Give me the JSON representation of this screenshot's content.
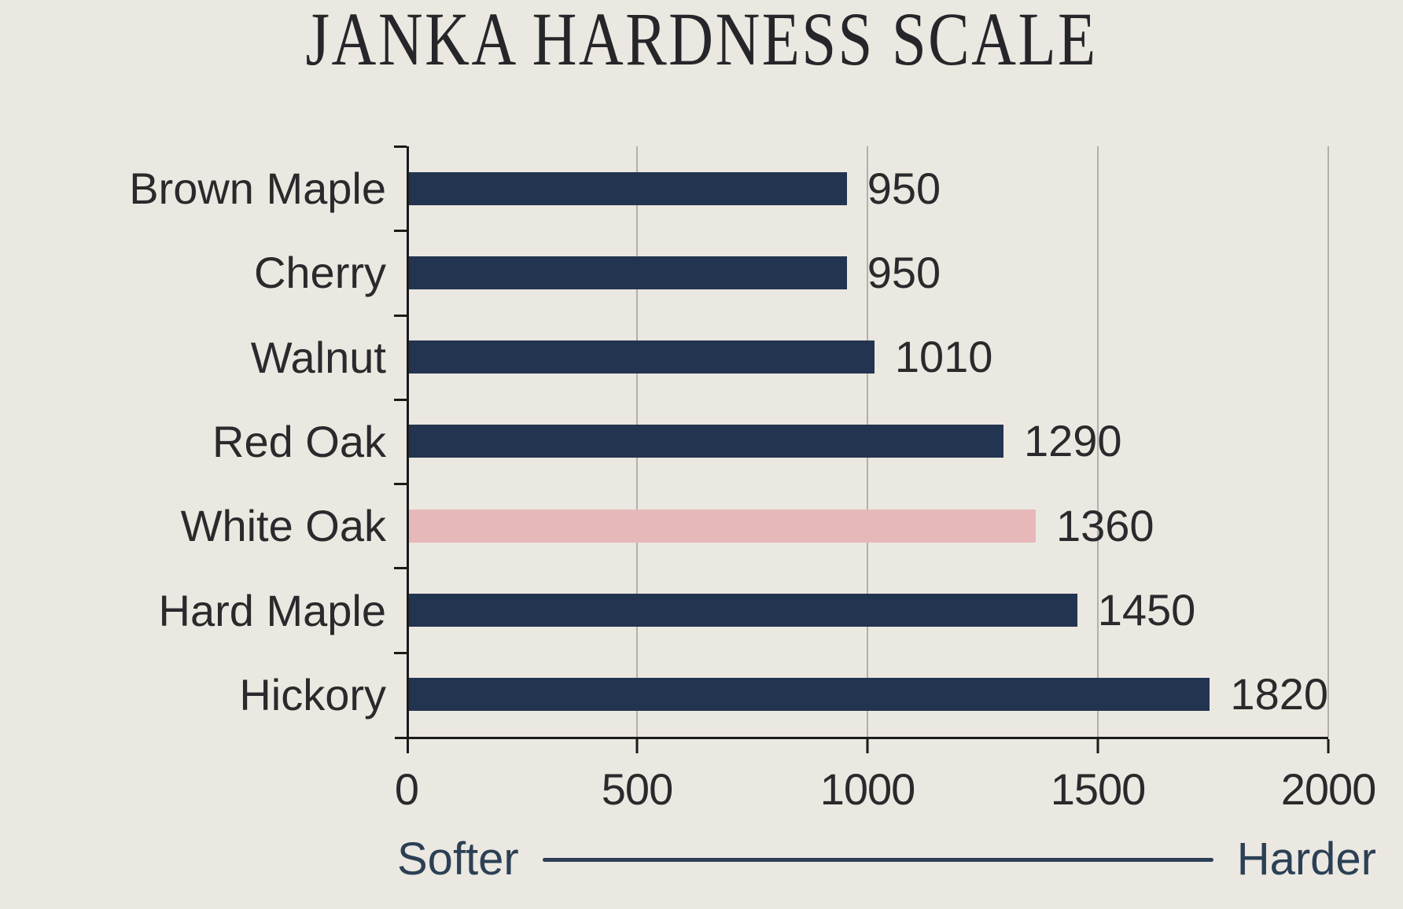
{
  "title": "JANKA HARDNESS SCALE",
  "chart_data": {
    "type": "bar",
    "orientation": "horizontal",
    "title": "JANKA HARDNESS SCALE",
    "categories": [
      "Brown Maple",
      "Cherry",
      "Walnut",
      "Red Oak",
      "White Oak",
      "Hard Maple",
      "Hickory"
    ],
    "values": [
      950,
      950,
      1010,
      1290,
      1360,
      1450,
      1820
    ],
    "value_labels": [
      "950",
      "950",
      "1010",
      "1290",
      "1360",
      "1450",
      "1820"
    ],
    "highlighted_category": "White Oak",
    "xlim": [
      0,
      2000
    ],
    "x_ticks": [
      0,
      500,
      1000,
      1500,
      2000
    ],
    "grid": true,
    "legend": "none",
    "xlabel": "",
    "ylabel": ""
  },
  "footer": {
    "left_label": "Softer",
    "right_label": "Harder"
  },
  "colors": {
    "background": "#EBE8E1",
    "bar": "#233450",
    "bar_highlight": "#E6B8BA",
    "axis": "#1B1B1B",
    "gridline": "#B3B0AC",
    "text": "#2A2A2C",
    "accent_text": "#2B4055"
  }
}
